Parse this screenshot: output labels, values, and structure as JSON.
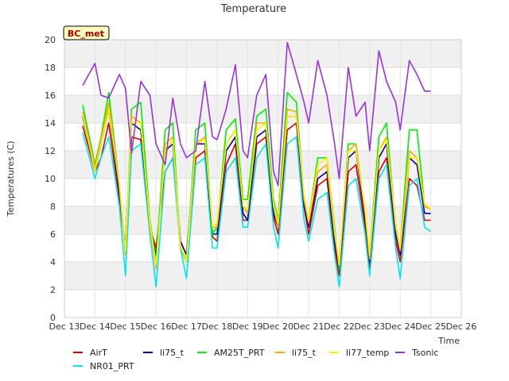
{
  "chart_data": {
    "type": "line",
    "title": "Temperature",
    "badge": "BC_met",
    "xlabel": "Time",
    "ylabel": "Temperatures (C)",
    "x_ticks": [
      "Dec 13",
      "Dec 14",
      "Dec 15",
      "Dec 16",
      "Dec 17",
      "Dec 18",
      "Dec 19",
      "Dec 20",
      "Dec 21",
      "Dec 22",
      "Dec 23",
      "Dec 24",
      "Dec 25",
      "Dec 26"
    ],
    "xlim": [
      13,
      26
    ],
    "y_ticks": [
      "0",
      "2",
      "4",
      "6",
      "8",
      "10",
      "12",
      "14",
      "16",
      "18",
      "20"
    ],
    "ylim": [
      0,
      20
    ],
    "grid": true,
    "legend_position": "bottom",
    "x": [
      13.6,
      14.0,
      14.2,
      14.45,
      14.8,
      15.0,
      15.2,
      15.5,
      15.8,
      16.0,
      16.3,
      16.55,
      16.8,
      17.0,
      17.3,
      17.6,
      17.85,
      18.0,
      18.3,
      18.6,
      18.85,
      19.0,
      19.3,
      19.6,
      19.85,
      20.0,
      20.3,
      20.6,
      20.85,
      21.0,
      21.3,
      21.6,
      21.85,
      22.0,
      22.3,
      22.55,
      22.85,
      23.0,
      23.3,
      23.55,
      23.85,
      24.0,
      24.3,
      24.55,
      24.8,
      25.0
    ],
    "series": [
      {
        "name": "AirT",
        "color": "#dd0000",
        "values": [
          13.8,
          10.5,
          11.5,
          14.0,
          8.5,
          5.0,
          13.0,
          12.8,
          6.5,
          5.0,
          10.5,
          11.5,
          5.5,
          4.5,
          11.5,
          12.0,
          5.8,
          5.5,
          11.0,
          12.5,
          7.0,
          7.0,
          12.5,
          13.0,
          7.2,
          6.0,
          13.5,
          14.0,
          8.0,
          6.0,
          9.5,
          10.0,
          5.0,
          3.0,
          10.5,
          11.0,
          6.5,
          3.5,
          10.5,
          11.5,
          5.5,
          4.0,
          10.0,
          9.5,
          7.0,
          7.0
        ]
      },
      {
        "name": "NR01_PRT",
        "color": "#00e5ee",
        "values": [
          13.3,
          10.0,
          11.5,
          13.0,
          8.0,
          3.0,
          12.0,
          12.5,
          6.0,
          2.2,
          10.5,
          11.5,
          5.0,
          2.8,
          11.0,
          11.5,
          5.0,
          5.0,
          10.5,
          11.5,
          6.5,
          6.5,
          11.5,
          12.5,
          6.5,
          5.0,
          12.5,
          13.0,
          7.0,
          5.5,
          8.5,
          9.0,
          4.5,
          2.2,
          9.5,
          10.0,
          6.0,
          3.0,
          10.0,
          11.0,
          5.0,
          2.8,
          9.5,
          10.0,
          6.5,
          6.2
        ]
      },
      {
        "name": "li75_t",
        "color": "#0000aa",
        "values": [
          14.5,
          10.5,
          12.5,
          15.0,
          9.0,
          5.0,
          14.0,
          13.5,
          6.5,
          4.5,
          12.0,
          12.5,
          5.5,
          4.5,
          12.5,
          12.5,
          6.0,
          6.0,
          12.0,
          13.0,
          7.5,
          7.0,
          13.0,
          13.5,
          7.5,
          6.5,
          14.5,
          14.5,
          8.0,
          6.5,
          10.0,
          10.5,
          5.5,
          3.5,
          11.5,
          12.0,
          7.0,
          4.0,
          11.5,
          12.5,
          6.0,
          4.5,
          11.5,
          11.0,
          7.5,
          7.5
        ]
      },
      {
        "name": "AM25T_PRT",
        "color": "#00ee00",
        "values": [
          15.3,
          11.0,
          13.0,
          16.2,
          9.5,
          4.5,
          15.0,
          15.5,
          7.0,
          4.0,
          13.5,
          14.0,
          5.0,
          4.0,
          13.5,
          14.0,
          6.0,
          6.5,
          13.5,
          14.3,
          8.5,
          8.5,
          14.5,
          15.0,
          8.5,
          7.0,
          16.2,
          15.5,
          8.5,
          7.0,
          11.5,
          11.5,
          6.5,
          3.5,
          12.5,
          12.5,
          7.5,
          4.5,
          13.0,
          14.0,
          6.5,
          5.0,
          13.5,
          13.5,
          8.0,
          7.8
        ]
      },
      {
        "name": "li75_t",
        "color": "#ffaa00",
        "values": [
          14.8,
          10.8,
          12.8,
          15.5,
          9.5,
          4.5,
          14.5,
          14.0,
          6.5,
          3.5,
          12.5,
          13.0,
          5.0,
          4.2,
          12.5,
          13.0,
          6.5,
          6.5,
          12.5,
          13.5,
          8.0,
          7.5,
          14.0,
          14.0,
          8.0,
          6.5,
          15.0,
          14.8,
          8.5,
          6.8,
          10.5,
          11.0,
          6.0,
          3.8,
          12.0,
          12.5,
          7.5,
          4.2,
          12.0,
          13.0,
          6.5,
          4.8,
          12.0,
          11.5,
          8.0,
          7.8
        ]
      },
      {
        "name": "li77_temp",
        "color": "#ffee00",
        "values": [
          14.6,
          10.5,
          12.5,
          15.0,
          9.5,
          4.8,
          14.0,
          14.0,
          6.8,
          3.8,
          12.0,
          12.8,
          5.2,
          4.0,
          12.5,
          12.8,
          6.5,
          6.8,
          12.5,
          13.5,
          8.0,
          7.8,
          13.5,
          14.0,
          8.2,
          6.8,
          14.5,
          14.5,
          8.8,
          7.0,
          11.0,
          11.5,
          6.2,
          3.8,
          12.0,
          12.0,
          7.8,
          4.5,
          12.0,
          12.8,
          6.8,
          5.0,
          11.5,
          11.5,
          8.2,
          7.8
        ]
      },
      {
        "name": "Tsonic",
        "color": "#9933dd",
        "values": [
          16.7,
          18.3,
          16.0,
          15.8,
          17.5,
          16.5,
          11.8,
          17.0,
          16.0,
          12.5,
          11.0,
          15.8,
          12.5,
          11.5,
          12.0,
          17.0,
          13.0,
          12.8,
          15.0,
          18.2,
          12.0,
          11.5,
          16.0,
          17.5,
          10.5,
          9.5,
          19.8,
          17.5,
          15.5,
          14.0,
          18.5,
          16.0,
          12.5,
          10.0,
          18.0,
          14.5,
          15.5,
          12.0,
          19.2,
          17.0,
          15.5,
          13.5,
          18.5,
          17.5,
          16.3,
          16.3
        ]
      }
    ]
  }
}
